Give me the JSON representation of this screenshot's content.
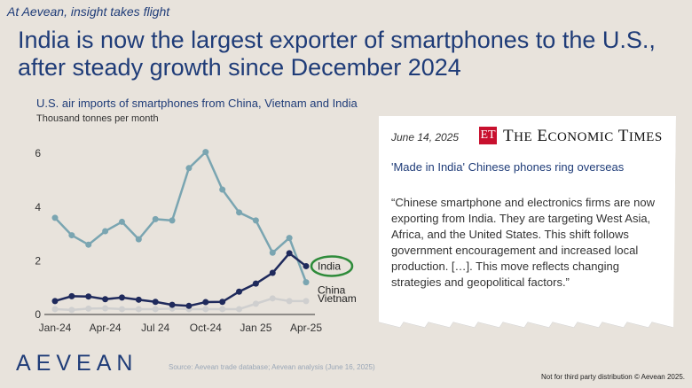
{
  "header": {
    "tagline": "At Aevean, insight takes flight",
    "headline": "India is now the largest exporter of smartphones to the U.S., after steady growth since December 2024"
  },
  "chart_data": {
    "type": "line",
    "title": "U.S. air imports of smartphones from China, Vietnam and India",
    "subtitle": "Thousand tonnes per month",
    "x": [
      "2024-01",
      "2024-02",
      "2024-03",
      "2024-04",
      "2024-05",
      "2024-06",
      "2024-07",
      "2024-08",
      "2024-09",
      "2024-10",
      "2024-11",
      "2024-12",
      "2025-01",
      "2025-02",
      "2025-03",
      "2025-04"
    ],
    "x_tick_labels": [
      "Jan-24",
      "Apr-24",
      "Jul 24",
      "Oct-24",
      "Jan 25",
      "Apr-25"
    ],
    "x_tick_dates": [
      "2024-01",
      "2024-04",
      "2024-07",
      "2024-10",
      "2025-01",
      "2025-04"
    ],
    "y_ticks": [
      0,
      2,
      4,
      6
    ],
    "ylim": [
      0,
      6.4
    ],
    "grid": false,
    "series": [
      {
        "name": "China",
        "color": "#7aa5b1",
        "values": [
          3.6,
          2.95,
          2.6,
          3.1,
          3.45,
          2.8,
          3.55,
          3.5,
          5.45,
          6.05,
          4.65,
          3.8,
          3.5,
          2.3,
          2.85,
          1.2
        ]
      },
      {
        "name": "India",
        "color": "#1f2a5c",
        "values": [
          0.5,
          0.68,
          0.67,
          0.57,
          0.63,
          0.55,
          0.47,
          0.36,
          0.32,
          0.46,
          0.47,
          0.85,
          1.15,
          1.55,
          2.28,
          1.8
        ]
      },
      {
        "name": "Vietnam",
        "color": "#cfcfcf",
        "values": [
          0.2,
          0.17,
          0.22,
          0.23,
          0.2,
          0.2,
          0.2,
          0.22,
          0.2,
          0.2,
          0.2,
          0.2,
          0.4,
          0.6,
          0.5,
          0.5
        ]
      }
    ],
    "highlight": "India",
    "highlight_color": "#2e8b3a"
  },
  "footer": {
    "brand": "AEVEAN",
    "source": "Source: Aevean trade database; Aevean analysis (June 16, 2025)",
    "disclaimer": "Not for third party distribution © Aevean 2025."
  },
  "news": {
    "date": "June 14, 2025",
    "publication_mark": "ET",
    "publication": "The Economic Times",
    "headline": "'Made in India' Chinese phones ring overseas",
    "quote": "“Chinese smartphone and electronics firms are now exporting from India. They are targeting West Asia, Africa, and the United States. This shift follows government encouragement and increased local production. […]. This move reflects changing strategies and geopolitical factors.”",
    "brand_color": "#c8102e"
  }
}
